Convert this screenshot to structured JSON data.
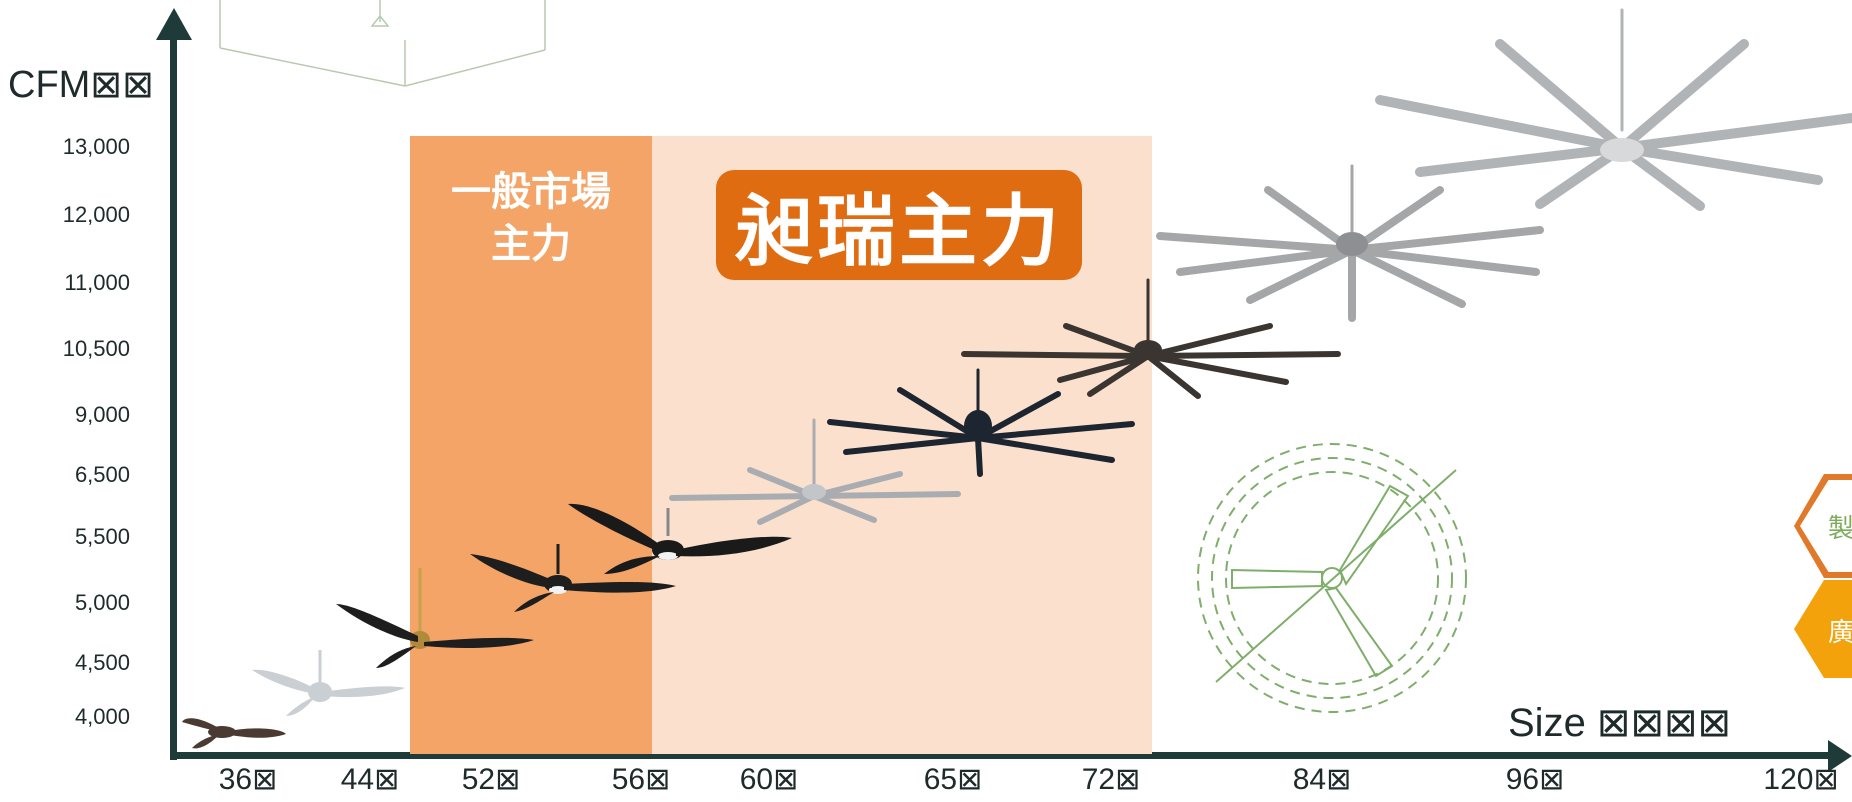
{
  "axes": {
    "y_title": "CFM⊠⊠",
    "x_title": "Size ⊠⊠⊠⊠"
  },
  "y_ticks": [
    "13,000",
    "12,000",
    "11,000",
    "10,500",
    "9,000",
    "6,500",
    "5,500",
    "5,000",
    "4,500",
    "4,000"
  ],
  "x_ticks": [
    "36⊠",
    "44⊠",
    "52⊠",
    "56⊠",
    "60⊠",
    "65⊠",
    "72⊠",
    "84⊠",
    "96⊠",
    "120⊠"
  ],
  "bands": {
    "general_label": "一般市場\n主力",
    "main_label": "昶瑞主力"
  },
  "side_badges": {
    "badge_1": "製",
    "badge_2": "廣"
  },
  "colors": {
    "axis": "#1f3b39",
    "general_band": "#f3a466",
    "main_band": "#fbe0cd",
    "main_badge": "#e06c12",
    "hex_fill": "#f4a20b"
  }
}
